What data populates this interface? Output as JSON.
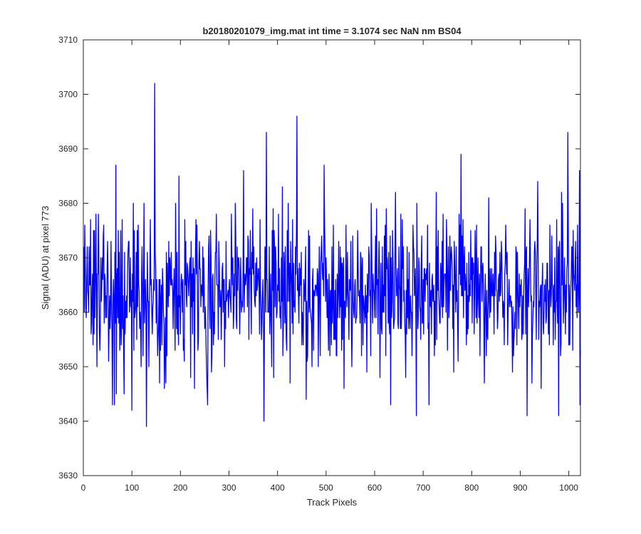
{
  "chart_data": {
    "type": "line",
    "title": "b20180201079_img.mat int time = 3.1074 sec  NaN nm BS04",
    "xlabel": "Track Pixels",
    "ylabel": "Signal (ADU) at pixel 773",
    "xlim": [
      0,
      1024
    ],
    "ylim": [
      3630,
      3710
    ],
    "x_ticks": [
      0,
      100,
      200,
      300,
      400,
      500,
      600,
      700,
      800,
      900,
      1000
    ],
    "x_tick_labels": [
      "0",
      "100",
      "200",
      "300",
      "400",
      "500",
      "600",
      "700",
      "800",
      "900",
      "1000"
    ],
    "y_ticks": [
      3630,
      3640,
      3650,
      3660,
      3670,
      3680,
      3690,
      3700,
      3710
    ],
    "y_tick_labels": [
      "3630",
      "3640",
      "3650",
      "3660",
      "3670",
      "3680",
      "3690",
      "3700",
      "3710"
    ],
    "grid": false,
    "line_color": "#0000ff",
    "series": [
      {
        "name": "",
        "x_start": 1,
        "x_step": 1,
        "values_note_points": 1024,
        "baseline_mean": 3664,
        "noise_std": 7,
        "min": 3639,
        "max": 3702,
        "notable_points": [
          {
            "x": 67,
            "y": 3687
          },
          {
            "x": 68,
            "y": 3645
          },
          {
            "x": 100,
            "y": 3642
          },
          {
            "x": 130,
            "y": 3639
          },
          {
            "x": 147,
            "y": 3702
          },
          {
            "x": 197,
            "y": 3685
          },
          {
            "x": 256,
            "y": 3643
          },
          {
            "x": 330,
            "y": 3686
          },
          {
            "x": 372,
            "y": 3640
          },
          {
            "x": 377,
            "y": 3693
          },
          {
            "x": 440,
            "y": 3696
          },
          {
            "x": 686,
            "y": 3641
          },
          {
            "x": 778,
            "y": 3689
          },
          {
            "x": 914,
            "y": 3641
          },
          {
            "x": 998,
            "y": 3693
          },
          {
            "x": 1022,
            "y": 3686
          }
        ]
      }
    ]
  }
}
